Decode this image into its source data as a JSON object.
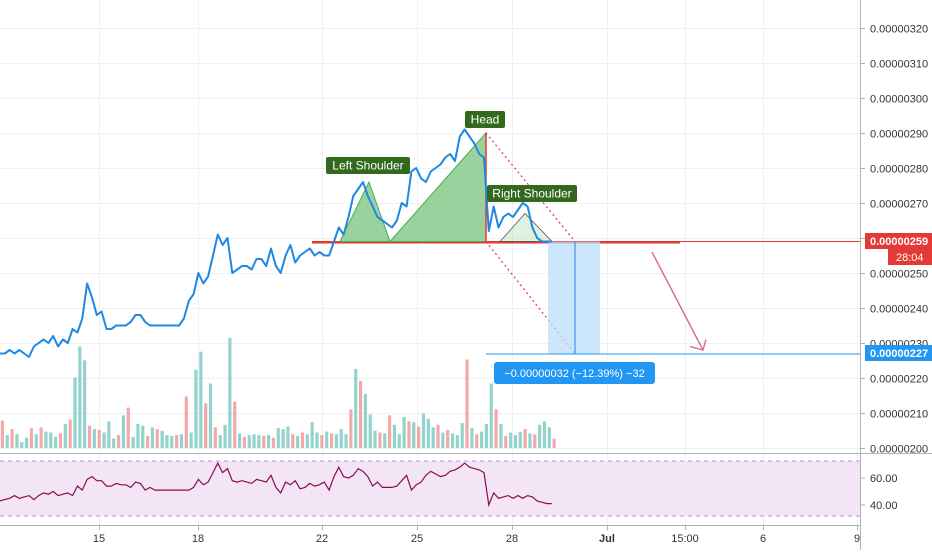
{
  "chart_data": {
    "type": "line",
    "x_ticks": [
      "15",
      "18",
      "22",
      "25",
      "28",
      "Jul",
      "15:00",
      "6",
      "9"
    ],
    "price": {
      "y_ticks": [
        "0.00000320",
        "0.00000310",
        "0.00000300",
        "0.00000290",
        "0.00000280",
        "0.00000270",
        "0.00000260",
        "0.00000250",
        "0.00000240",
        "0.00000230",
        "0.00000220",
        "0.00000210",
        "0.00000200"
      ],
      "ylim": [
        2e-06,
        3.3e-06
      ],
      "series": [
        {
          "values": [
            2.27,
            2.27,
            2.28,
            2.27,
            2.28,
            2.27,
            2.26,
            2.29,
            2.3,
            2.31,
            2.3,
            2.32,
            2.29,
            2.31,
            2.3,
            2.34,
            2.33,
            2.37,
            2.47,
            2.43,
            2.38,
            2.39,
            2.34,
            2.34,
            2.35,
            2.35,
            2.35,
            2.36,
            2.38,
            2.38,
            2.36,
            2.35,
            2.35,
            2.35,
            2.35,
            2.35,
            2.35,
            2.35,
            2.37,
            2.42,
            2.44,
            2.5,
            2.47,
            2.49,
            2.55,
            2.61,
            2.58,
            2.6,
            2.5,
            2.51,
            2.52,
            2.52,
            2.51,
            2.54,
            2.54,
            2.52,
            2.57,
            2.52,
            2.5,
            2.55,
            2.58,
            2.53,
            2.55,
            2.56,
            2.57,
            2.55,
            2.56,
            2.55,
            2.55,
            2.59,
            2.63,
            2.61,
            2.66,
            2.72,
            2.74,
            2.76,
            2.72,
            2.69,
            2.66,
            2.65,
            2.64,
            2.63,
            2.65,
            2.7,
            2.69,
            2.79,
            2.8,
            2.77,
            2.76,
            2.79,
            2.8,
            2.81,
            2.83,
            2.84,
            2.82,
            2.89,
            2.91,
            2.89,
            2.87,
            2.84,
            2.83,
            2.62,
            2.69,
            2.63,
            2.66,
            2.67,
            2.66,
            2.68,
            2.7,
            2.69,
            2.63,
            2.6,
            2.59,
            2.59,
            2.59
          ]
        }
      ],
      "current_price": "0.00000259",
      "countdown": "28:04",
      "target_price": "0.00000227",
      "measure_label": "−0.00000032 (−12.39%) −32",
      "annotations": {
        "left_shoulder": "Left Shoulder",
        "head": "Head",
        "right_shoulder": "Right Shoulder"
      }
    },
    "volume": {
      "values": [
        3.2,
        1.5,
        2.2,
        1.6,
        0.7,
        1.2,
        2.3,
        1.6,
        2.4,
        1.9,
        1.8,
        1.3,
        1.7,
        2.8,
        3.3,
        8.2,
        11.8,
        10.2,
        2.6,
        2.2,
        2.1,
        1.8,
        3.1,
        1.1,
        1.5,
        3.8,
        4.7,
        1.3,
        2.8,
        2.6,
        1.4,
        2.4,
        2.2,
        2.0,
        1.5,
        1.4,
        1.5,
        1.6,
        6.0,
        1.8,
        9.1,
        11.2,
        5.2,
        7.5,
        2.4,
        1.5,
        2.7,
        12.8,
        5.4,
        1.7,
        1.3,
        1.5,
        1.6,
        1.5,
        1.4,
        1.5,
        1.2,
        2.3,
        2.2,
        2.5,
        1.6,
        1.4,
        1.8,
        1.6,
        3.0,
        1.8,
        1.5,
        1.9,
        1.7,
        1.6,
        2.2,
        1.6,
        4.5,
        9.2,
        7.8,
        6.3,
        3.9,
        2.0,
        1.8,
        1.7,
        3.8,
        2.7,
        1.6,
        3.6,
        3.1,
        3.0,
        2.5,
        4.0,
        3.4,
        2.4,
        2.7,
        1.8,
        2.1,
        1.7,
        1.5,
        2.9,
        10.3,
        2.3,
        1.6,
        1.9,
        2.8,
        7.5,
        4.5,
        2.8,
        1.4,
        1.8,
        1.5,
        1.9,
        2.2,
        1.7,
        1.6,
        2.7,
        3.1,
        2.4,
        1.1
      ],
      "colors": [
        "#ef9a9a",
        "#80cbc4"
      ]
    },
    "rsi": {
      "y_ticks": [
        "60.00",
        "40.00"
      ],
      "ylim": [
        30,
        75
      ],
      "values": [
        43,
        44,
        45,
        47,
        45,
        46,
        47,
        44,
        47,
        49,
        48,
        50,
        47,
        48,
        49,
        47,
        54,
        51,
        59,
        61,
        58,
        58,
        54,
        54,
        56,
        55,
        55,
        53,
        57,
        56,
        51,
        53,
        51,
        51,
        51,
        51,
        51,
        51,
        51,
        51,
        53,
        59,
        55,
        57,
        64,
        71,
        64,
        67,
        58,
        57,
        58,
        57,
        56,
        59,
        58,
        57,
        62,
        53,
        49,
        57,
        55,
        58,
        52,
        53,
        56,
        54,
        55,
        57,
        51,
        61,
        68,
        61,
        60,
        62,
        67,
        65,
        61,
        54,
        57,
        53,
        53,
        53,
        54,
        58,
        62,
        51,
        55,
        57,
        62,
        65,
        63,
        61,
        62,
        65,
        66,
        68,
        71,
        68,
        67,
        66,
        64,
        40,
        49,
        45,
        46,
        47,
        45,
        47,
        45,
        47,
        46,
        43,
        42,
        41,
        41
      ],
      "color": "#880e4f"
    }
  }
}
